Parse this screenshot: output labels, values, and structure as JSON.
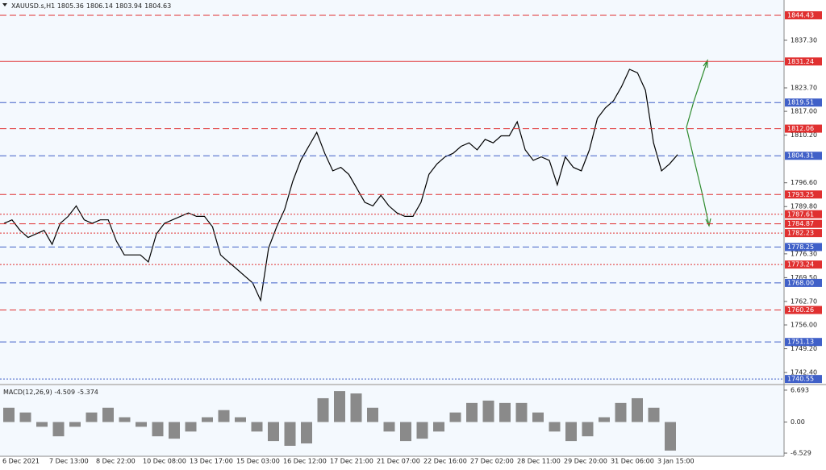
{
  "chart_data": [
    {
      "type": "line",
      "title": "XAUUSD.s,H1",
      "ohlc": [
        1805.36,
        1806.14,
        1803.94,
        1804.63
      ],
      "series": [
        {
          "color": "#000000",
          "values": [
            1785,
            1786,
            1783,
            1781,
            1782,
            1783,
            1779,
            1785,
            1787,
            1790,
            1786,
            1785,
            1786,
            1786,
            1780,
            1776,
            1776,
            1776,
            1774,
            1782,
            1785,
            1786,
            1787,
            1788,
            1787,
            1787,
            1784,
            1776,
            1774,
            1772,
            1770,
            1768,
            1763,
            1778,
            1784,
            1789,
            1797,
            1803,
            1807,
            1811,
            1805,
            1800,
            1801,
            1799,
            1795,
            1791,
            1790,
            1793,
            1790,
            1788,
            1787,
            1787,
            1791,
            1799,
            1802,
            1804,
            1805,
            1807,
            1808,
            1806,
            1809,
            1808,
            1810,
            1810,
            1814,
            1806,
            1803,
            1804,
            1803,
            1796,
            1804,
            1801,
            1800,
            1806,
            1815,
            1818,
            1820,
            1824,
            1829,
            1828,
            1823,
            1808,
            1800,
            1802,
            1804.63
          ]
        }
      ],
      "ylim": [
        1739.2,
        1848.8
      ],
      "yticks": [
        {
          "value": 1837.3,
          "label": "1837.30"
        },
        {
          "value": 1823.7,
          "label": "1823.70"
        },
        {
          "value": 1817,
          "label": "1817.00"
        },
        {
          "value": 1810.2,
          "label": "1810.20"
        },
        {
          "value": 1796.6,
          "label": "1796.60"
        },
        {
          "value": 1789.8,
          "label": "1789.80"
        },
        {
          "value": 1776.3,
          "label": "1776.30"
        },
        {
          "value": 1769.5,
          "label": "1769.50"
        },
        {
          "value": 1762.7,
          "label": "1762.70"
        },
        {
          "value": 1756,
          "label": "1756.00"
        },
        {
          "value": 1749.2,
          "label": "1749.20"
        },
        {
          "value": 1742.4,
          "label": "1742.40"
        }
      ],
      "levels": [
        {
          "value": 1844.43,
          "color": "#e03030",
          "style": "dashed"
        },
        {
          "value": 1831.24,
          "color": "#e03030",
          "style": "solid"
        },
        {
          "value": 1819.51,
          "color": "#4060c8",
          "style": "dashed"
        },
        {
          "value": 1812.06,
          "color": "#e03030",
          "style": "dashed"
        },
        {
          "value": 1804.31,
          "color": "#4060c8",
          "style": "dashed"
        },
        {
          "value": 1793.25,
          "color": "#e03030",
          "style": "dashed"
        },
        {
          "value": 1787.61,
          "color": "#e03030",
          "style": "dotted"
        },
        {
          "value": 1784.87,
          "color": "#e03030",
          "style": "dashed"
        },
        {
          "value": 1782.23,
          "color": "#e03030",
          "style": "dotted"
        },
        {
          "value": 1778.25,
          "color": "#4060c8",
          "style": "dashed"
        },
        {
          "value": 1773.24,
          "color": "#e03030",
          "style": "dotted"
        },
        {
          "value": 1768,
          "label": "1768.00",
          "color": "#4060c8",
          "style": "dashed"
        },
        {
          "value": 1760.26,
          "color": "#e03030",
          "style": "dashed"
        },
        {
          "value": 1751.13,
          "color": "#4060c8",
          "style": "dashed"
        },
        {
          "value": 1740.55,
          "color": "#4060c8",
          "style": "dotted"
        }
      ],
      "xlabels": [
        "6 Dec 2021",
        "7 Dec 13:00",
        "8 Dec 22:00",
        "10 Dec 08:00",
        "13 Dec 17:00",
        "15 Dec 03:00",
        "16 Dec 12:00",
        "17 Dec 21:00",
        "21 Dec 07:00",
        "22 Dec 16:00",
        "27 Dec 02:00",
        "28 Dec 11:00",
        "29 Dec 20:00",
        "31 Dec 06:00",
        "3 Jan 15:00"
      ]
    },
    {
      "type": "bar",
      "title": "MACD(12,26,9)",
      "readings": [
        -4.509,
        -5.374
      ],
      "color": "#8a8a8a",
      "values": [
        3,
        2,
        -1,
        -3,
        -1,
        2,
        3,
        1,
        -1,
        -3,
        -3.5,
        -2,
        1,
        2.5,
        1,
        -2,
        -4,
        -5,
        -4.5,
        5,
        6.5,
        6,
        3,
        -2,
        -4,
        -3.5,
        -2,
        2,
        4,
        4.5,
        4,
        4,
        2,
        -2,
        -4,
        -3,
        1,
        4,
        5,
        3,
        -6
      ],
      "ylim": [
        -7.2,
        7.7
      ],
      "yticks": [
        6.693,
        {
          "value": 0,
          "label": "0.00"
        },
        -6.529
      ]
    }
  ]
}
